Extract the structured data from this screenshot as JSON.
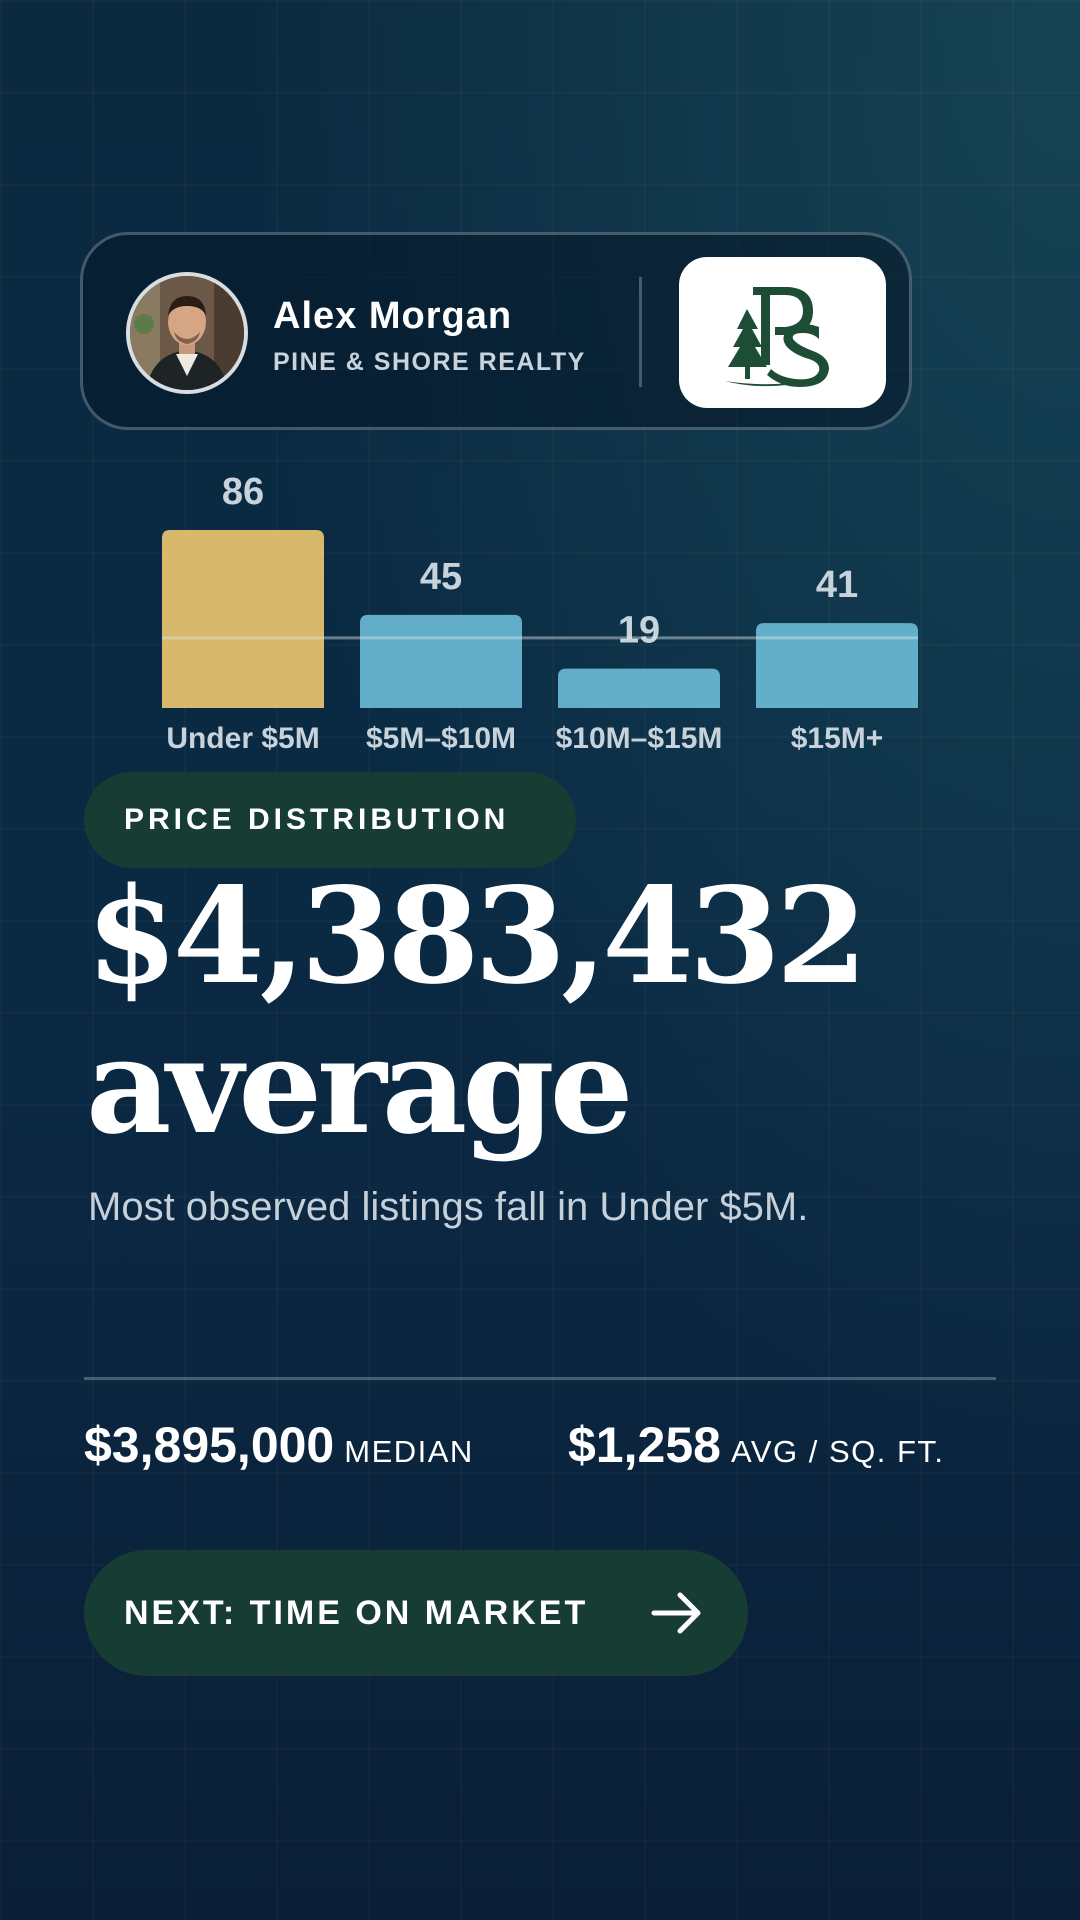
{
  "agent": {
    "name": "Alex Morgan",
    "company": "PINE & SHORE REALTY",
    "avatar_icon": "person-portrait",
    "logo_icon": "pine-shore-monogram",
    "logo_color": "#1d4d35"
  },
  "chart_data": {
    "type": "bar",
    "categories": [
      "Under $5M",
      "$5M–$10M",
      "$10M–$15M",
      "$15M+"
    ],
    "values": [
      86,
      45,
      19,
      41
    ],
    "bar_colors": [
      "#d8b86a",
      "#6ab9d4",
      "#6ab9d4",
      "#6ab9d4"
    ],
    "reference_line": 45,
    "grid": false,
    "legend": "none"
  },
  "section": {
    "label": "PRICE DISTRIBUTION"
  },
  "headline": {
    "value": "$4,383,432",
    "suffix": "average"
  },
  "subtitle": "Most observed listings fall in Under $5M.",
  "stats": [
    {
      "value": "$3,895,000",
      "label": "MEDIAN"
    },
    {
      "value": "$1,258",
      "label": "AVG / SQ. FT."
    }
  ],
  "next_button": {
    "label": "NEXT: TIME ON MARKET",
    "icon": "arrow-right-icon"
  },
  "colors": {
    "accent_green": "#173c34",
    "highlight_bar": "#d8b86a",
    "bar": "#6ab9d4"
  }
}
